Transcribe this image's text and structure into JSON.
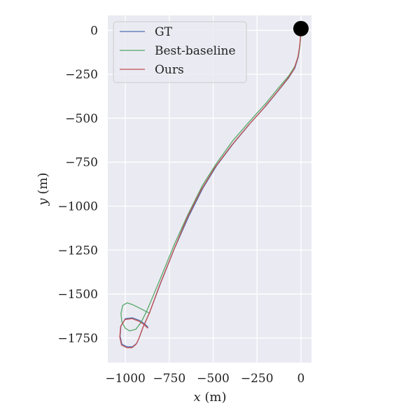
{
  "chart_data": {
    "type": "line",
    "title": "",
    "xlabel_var": "x",
    "xlabel_unit": " (m)",
    "ylabel_var": "y",
    "ylabel_unit": " (m)",
    "xlim": [
      -1100,
      60
    ],
    "ylim": [
      -1890,
      85
    ],
    "xticks": [
      -1000,
      -750,
      -500,
      -250,
      0
    ],
    "yticks": [
      0,
      -250,
      -500,
      -750,
      -1000,
      -1250,
      -1500,
      -1750
    ],
    "tick_labels_x": [
      "−1000",
      "−750",
      "−500",
      "−250",
      "0"
    ],
    "tick_labels_y": [
      "0",
      "−250",
      "−500",
      "−750",
      "−1000",
      "−1250",
      "−1500",
      "−1750"
    ],
    "grid": true,
    "background": "#eaeaf2",
    "legend_position": "upper-left",
    "start_marker": {
      "x": 0,
      "y": 10,
      "color": "#000000"
    },
    "series": [
      {
        "name": "GT",
        "color": "#4c72b0",
        "points": [
          [
            0,
            10
          ],
          [
            -2,
            -40
          ],
          [
            -6,
            -90
          ],
          [
            -15,
            -150
          ],
          [
            -35,
            -215
          ],
          [
            -70,
            -270
          ],
          [
            -130,
            -345
          ],
          [
            -200,
            -430
          ],
          [
            -290,
            -530
          ],
          [
            -390,
            -650
          ],
          [
            -480,
            -770
          ],
          [
            -560,
            -900
          ],
          [
            -640,
            -1060
          ],
          [
            -720,
            -1240
          ],
          [
            -800,
            -1440
          ],
          [
            -860,
            -1600
          ],
          [
            -900,
            -1690
          ],
          [
            -920,
            -1745
          ],
          [
            -935,
            -1780
          ],
          [
            -960,
            -1800
          ],
          [
            -990,
            -1800
          ],
          [
            -1020,
            -1785
          ],
          [
            -1030,
            -1740
          ],
          [
            -1025,
            -1680
          ],
          [
            -1000,
            -1640
          ],
          [
            -960,
            -1635
          ],
          [
            -920,
            -1650
          ],
          [
            -890,
            -1670
          ],
          [
            -870,
            -1690
          ]
        ]
      },
      {
        "name": "Best-baseline",
        "color": "#55a868",
        "points": [
          [
            0,
            10
          ],
          [
            -2,
            -40
          ],
          [
            -6,
            -90
          ],
          [
            -15,
            -145
          ],
          [
            -35,
            -205
          ],
          [
            -70,
            -260
          ],
          [
            -130,
            -330
          ],
          [
            -200,
            -415
          ],
          [
            -290,
            -515
          ],
          [
            -390,
            -630
          ],
          [
            -480,
            -755
          ],
          [
            -560,
            -880
          ],
          [
            -640,
            -1040
          ],
          [
            -720,
            -1215
          ],
          [
            -800,
            -1410
          ],
          [
            -850,
            -1530
          ],
          [
            -880,
            -1600
          ],
          [
            -910,
            -1660
          ],
          [
            -940,
            -1700
          ],
          [
            -975,
            -1710
          ],
          [
            -1000,
            -1695
          ],
          [
            -1020,
            -1660
          ],
          [
            -1025,
            -1610
          ],
          [
            -1015,
            -1565
          ],
          [
            -990,
            -1550
          ],
          [
            -960,
            -1560
          ],
          [
            -920,
            -1580
          ],
          [
            -880,
            -1600
          ],
          [
            -860,
            -1610
          ]
        ]
      },
      {
        "name": "Ours",
        "color": "#c44e52",
        "points": [
          [
            0,
            10
          ],
          [
            -3,
            -40
          ],
          [
            -8,
            -95
          ],
          [
            -18,
            -155
          ],
          [
            -40,
            -222
          ],
          [
            -80,
            -280
          ],
          [
            -140,
            -355
          ],
          [
            -210,
            -440
          ],
          [
            -300,
            -540
          ],
          [
            -400,
            -660
          ],
          [
            -490,
            -780
          ],
          [
            -570,
            -910
          ],
          [
            -650,
            -1070
          ],
          [
            -725,
            -1250
          ],
          [
            -805,
            -1450
          ],
          [
            -862,
            -1605
          ],
          [
            -902,
            -1695
          ],
          [
            -922,
            -1750
          ],
          [
            -938,
            -1785
          ],
          [
            -962,
            -1805
          ],
          [
            -992,
            -1805
          ],
          [
            -1022,
            -1790
          ],
          [
            -1032,
            -1745
          ],
          [
            -1027,
            -1685
          ],
          [
            -1002,
            -1645
          ],
          [
            -962,
            -1640
          ],
          [
            -922,
            -1655
          ],
          [
            -892,
            -1675
          ],
          [
            -872,
            -1695
          ]
        ]
      }
    ]
  }
}
